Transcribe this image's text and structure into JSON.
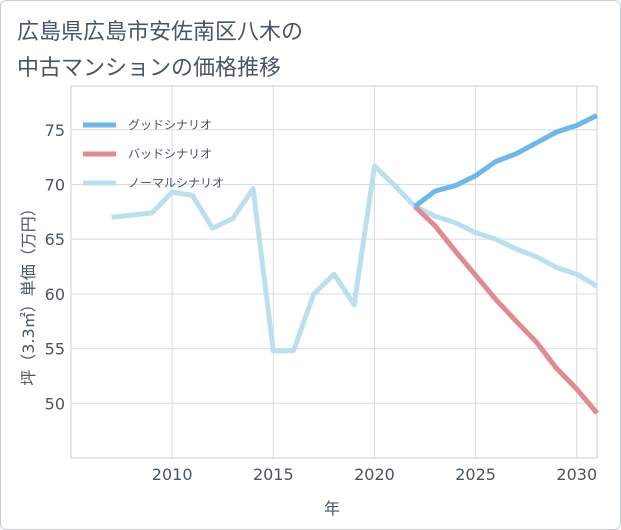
{
  "title_line1": "広島県広島市安佐南区八木の",
  "title_line2": "中古マンションの価格推移",
  "chart_data": {
    "type": "line",
    "title": "広島県広島市安佐南区八木の中古マンションの価格推移",
    "xlabel": "年",
    "ylabel": "坪（3.3㎡）単価（万円）",
    "xlim": [
      2005,
      2031
    ],
    "ylim": [
      45,
      79
    ],
    "xticks": [
      2010,
      2015,
      2020,
      2025,
      2030
    ],
    "yticks": [
      50,
      55,
      60,
      65,
      70,
      75
    ],
    "grid": true,
    "legend_position": "top-left",
    "series": [
      {
        "name": "グッドシナリオ",
        "color": "#6cb8ea",
        "x": [
          2022,
          2023,
          2024,
          2025,
          2026,
          2027,
          2028,
          2029,
          2030,
          2031
        ],
        "y": [
          68.0,
          69.4,
          69.9,
          70.8,
          72.1,
          72.8,
          73.8,
          74.8,
          75.4,
          76.3
        ]
      },
      {
        "name": "バッドシナリオ",
        "color": "#e08a92",
        "x": [
          2022,
          2023,
          2024,
          2025,
          2026,
          2027,
          2028,
          2029,
          2030,
          2031
        ],
        "y": [
          68.0,
          66.2,
          63.9,
          61.7,
          59.5,
          57.5,
          55.6,
          53.2,
          51.3,
          49.1
        ]
      },
      {
        "name": "ノーマルシナリオ",
        "color": "#bcdff0",
        "x": [
          2007,
          2008,
          2009,
          2010,
          2011,
          2012,
          2013,
          2014,
          2015,
          2016,
          2017,
          2018,
          2019,
          2020,
          2021,
          2022,
          2023,
          2024,
          2025,
          2026,
          2027,
          2028,
          2029,
          2030,
          2031
        ],
        "y": [
          67.0,
          67.2,
          67.4,
          69.3,
          69.0,
          66.0,
          66.9,
          69.6,
          54.8,
          54.8,
          60.0,
          61.8,
          59.0,
          71.7,
          69.9,
          68.0,
          67.1,
          66.5,
          65.6,
          65.0,
          64.1,
          63.4,
          62.4,
          61.8,
          60.7
        ]
      }
    ]
  }
}
